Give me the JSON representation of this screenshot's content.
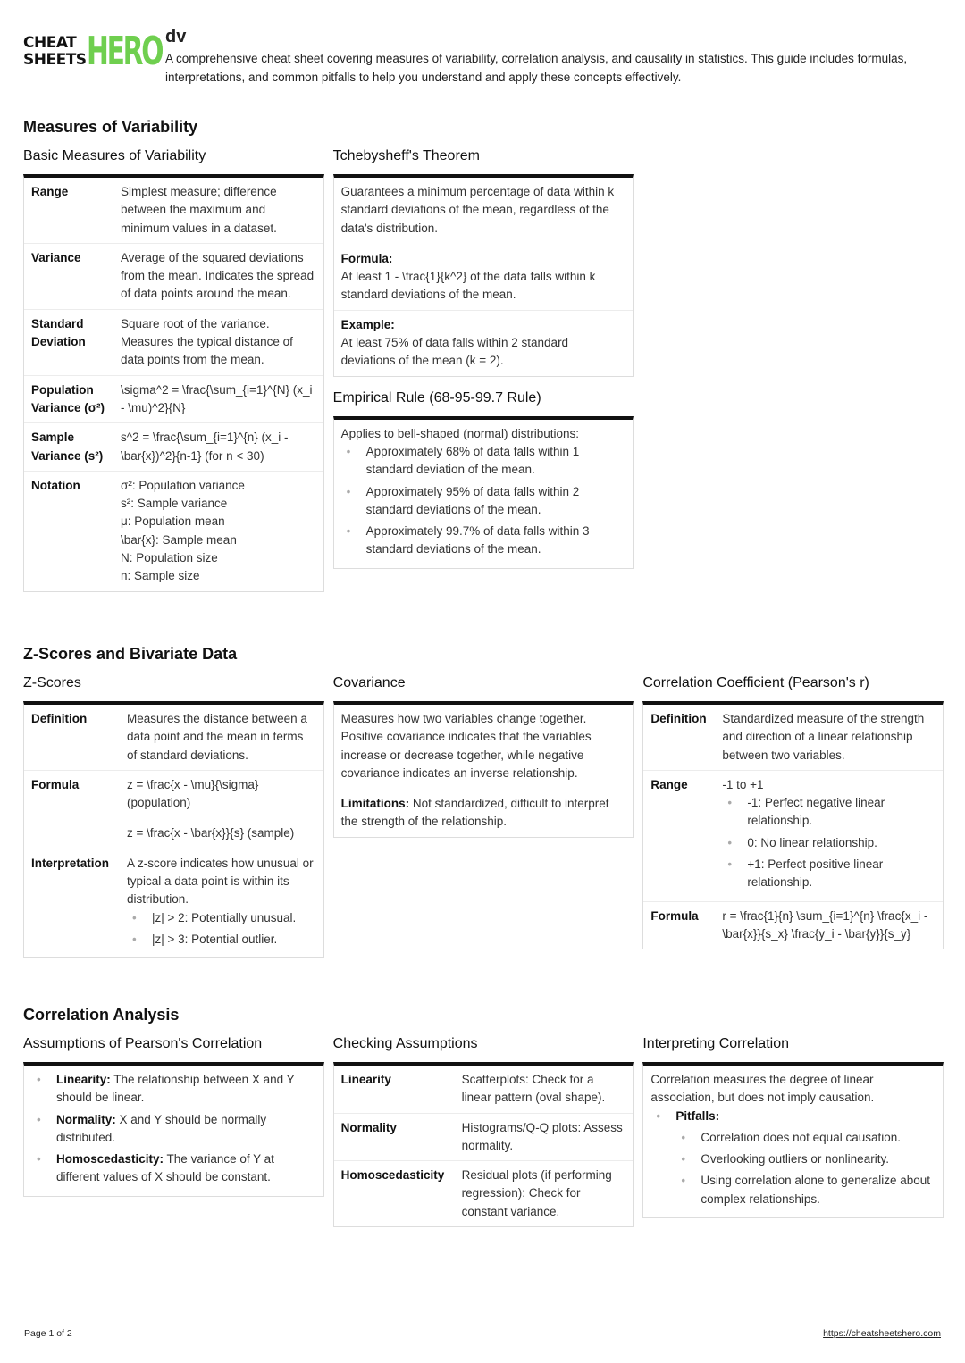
{
  "logo": {
    "line1": "CHEAT",
    "line2": "SHEETS",
    "hero": "HERO",
    "hero_color": "#6fcf4f"
  },
  "header": {
    "title": "dv",
    "description": "A comprehensive cheat sheet covering measures of variability, correlation analysis, and causality in statistics. This guide includes formulas, interpretations, and common pitfalls to help you understand and apply these concepts effectively."
  },
  "sections": [
    {
      "title": "Measures of Variability",
      "columns": [
        [
          {
            "id": "basic",
            "title": "Basic Measures of Variability",
            "rows": [
              {
                "label": "Range",
                "blocks": [
                  {
                    "text": "Simplest measure; difference between the maximum and minimum values in a dataset."
                  }
                ]
              },
              {
                "label": "Variance",
                "blocks": [
                  {
                    "text": "Average of the squared deviations from the mean. Indicates the spread of data points around the mean."
                  }
                ]
              },
              {
                "label": "Standard Deviation",
                "blocks": [
                  {
                    "text": "Square root of the variance. Measures the typical distance of data points from the mean."
                  }
                ]
              },
              {
                "label": "Population Variance (σ²)",
                "blocks": [
                  {
                    "text": "\\sigma^2 = \\frac{\\sum_{i=1}^{N} (x_i - \\mu)^2}{N}"
                  }
                ]
              },
              {
                "label": "Sample Variance (s²)",
                "blocks": [
                  {
                    "text": "s^2 = \\frac{\\sum_{i=1}^{n} (x_i - \\bar{x})^2}{n-1} (for n < 30)"
                  }
                ]
              },
              {
                "label": "Notation",
                "blocks": [
                  {
                    "text": "σ²: Population variance"
                  },
                  {
                    "text": "s²: Sample variance"
                  },
                  {
                    "text": "μ: Population mean"
                  },
                  {
                    "text": "\\bar{x}: Sample mean"
                  },
                  {
                    "text": "N: Population size"
                  },
                  {
                    "text": "n: Sample size"
                  }
                ]
              }
            ]
          }
        ],
        [
          {
            "id": "tcheby",
            "title": "Tchebysheff's Theorem",
            "rows": [
              {
                "blocks": [
                  {
                    "text": "Guarantees a minimum percentage of data within k standard deviations of the mean, regardless of the data's distribution.",
                    "pad": true
                  },
                  {
                    "heading": "Formula:"
                  },
                  {
                    "text": "At least 1 - \\frac{1}{k^2} of the data falls within k standard deviations of the mean."
                  }
                ]
              },
              {
                "blocks": [
                  {
                    "heading": "Example:"
                  },
                  {
                    "text": "At least 75% of data falls within 2 standard deviations of the mean (k = 2)."
                  }
                ]
              }
            ]
          },
          {
            "id": "empirical",
            "title": "Empirical Rule (68-95-99.7 Rule)",
            "rows": [
              {
                "blocks": [
                  {
                    "text": "Applies to bell-shaped (normal) distributions:"
                  },
                  {
                    "bullets": [
                      {
                        "text": "Approximately 68% of data falls within 1 standard deviation of the mean."
                      },
                      {
                        "text": "Approximately 95% of data falls within 2 standard deviations of the mean."
                      },
                      {
                        "text": "Approximately 99.7% of data falls within 3 standard deviations of the mean."
                      }
                    ]
                  }
                ]
              }
            ]
          }
        ],
        []
      ]
    },
    {
      "title": "Z-Scores and Bivariate Data",
      "columns": [
        [
          {
            "id": "zscores",
            "title": "Z-Scores",
            "rows": [
              {
                "label": "Definition",
                "blocks": [
                  {
                    "text": "Measures the distance between a data point and the mean in terms of standard deviations."
                  }
                ]
              },
              {
                "label": "Formula",
                "blocks": [
                  {
                    "text": "z = \\frac{x - \\mu}{\\sigma} (population)",
                    "pad": true
                  },
                  {
                    "text": "z = \\frac{x - \\bar{x}}{s} (sample)"
                  }
                ]
              },
              {
                "label": "Interpretation",
                "blocks": [
                  {
                    "text": "A z-score indicates how unusual or typical a data point is within its distribution."
                  },
                  {
                    "bullets": [
                      {
                        "text": "|z| > 2: Potentially unusual."
                      },
                      {
                        "text": "|z| > 3: Potential outlier."
                      }
                    ]
                  }
                ]
              }
            ]
          }
        ],
        [
          {
            "id": "covariance",
            "title": "Covariance",
            "rows": [
              {
                "blocks": [
                  {
                    "text": "Measures how two variables change together. Positive covariance indicates that the variables increase or decrease together, while negative covariance indicates an inverse relationship.",
                    "pad": true
                  },
                  {
                    "bold": "Limitations:",
                    "text": " Not standardized, difficult to interpret the strength of the relationship."
                  }
                ]
              }
            ]
          }
        ],
        [
          {
            "id": "pearson",
            "title": "Correlation Coefficient (Pearson's r)",
            "rows": [
              {
                "label": "Definition",
                "blocks": [
                  {
                    "text": "Standardized measure of the strength and direction of a linear relationship between two variables."
                  }
                ]
              },
              {
                "label": "Range",
                "blocks": [
                  {
                    "text": "-1 to +1"
                  },
                  {
                    "bullets": [
                      {
                        "text": "-1: Perfect negative linear relationship."
                      },
                      {
                        "text": "0: No linear relationship."
                      },
                      {
                        "text": "+1: Perfect positive linear relationship."
                      }
                    ]
                  }
                ]
              },
              {
                "label": "Formula",
                "blocks": [
                  {
                    "text": "r = \\frac{1}{n} \\sum_{i=1}^{n} \\frac{x_i - \\bar{x}}{s_x} \\frac{y_i - \\bar{y}}{s_y}"
                  }
                ]
              }
            ]
          }
        ]
      ]
    },
    {
      "title": "Correlation Analysis",
      "columns": [
        [
          {
            "id": "assumptions",
            "title": "Assumptions of Pearson's Correlation",
            "rows": [
              {
                "blocks": [
                  {
                    "bullets": [
                      {
                        "bold": "Linearity:",
                        "text": " The relationship between X and Y should be linear."
                      },
                      {
                        "bold": "Normality:",
                        "text": " X and Y should be normally distributed."
                      },
                      {
                        "bold": "Homoscedasticity:",
                        "text": " The variance of Y at different values of X should be constant."
                      }
                    ]
                  }
                ]
              }
            ]
          }
        ],
        [
          {
            "id": "checking",
            "title": "Checking Assumptions",
            "rows": [
              {
                "label": "Linearity",
                "blocks": [
                  {
                    "text": "Scatterplots: Check for a linear pattern (oval shape)."
                  }
                ]
              },
              {
                "label": "Normality",
                "blocks": [
                  {
                    "text": "Histograms/Q-Q plots: Assess normality."
                  }
                ]
              },
              {
                "label": "Homoscedasticity",
                "blocks": [
                  {
                    "text": "Residual plots (if performing regression): Check for constant variance."
                  }
                ]
              }
            ]
          }
        ],
        [
          {
            "id": "interpreting",
            "title": "Interpreting Correlation",
            "rows": [
              {
                "blocks": [
                  {
                    "text": "Correlation measures the degree of linear association, but does not imply causation."
                  },
                  {
                    "bullets": [
                      {
                        "bold": "Pitfalls:",
                        "text": "",
                        "sub": [
                          {
                            "text": "Correlation does not equal causation."
                          },
                          {
                            "text": "Overlooking outliers or nonlinearity."
                          },
                          {
                            "text": "Using correlation alone to generalize about complex relationships."
                          }
                        ]
                      }
                    ]
                  }
                ]
              }
            ]
          }
        ]
      ]
    }
  ],
  "footer": {
    "page": "Page 1 of 2",
    "link": "https://cheatsheetshero.com"
  }
}
